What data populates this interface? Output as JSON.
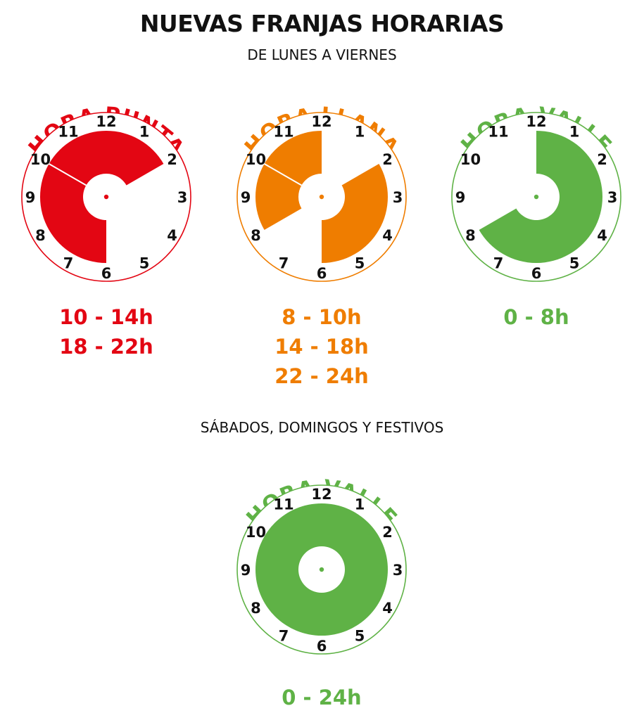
{
  "title": "NUEVAS FRANJAS HORARIAS",
  "weekdays_label": "DE LUNES A VIERNES",
  "weekend_label": "SÁBADOS, DOMINGOS Y FESTIVOS",
  "colors": {
    "punta": "#e30613",
    "llana": "#ef7d00",
    "valle": "#5fb246"
  },
  "clock_numbers": [
    "12",
    "1",
    "2",
    "3",
    "4",
    "5",
    "6",
    "7",
    "8",
    "9",
    "10",
    "11"
  ],
  "clocks": [
    {
      "id": "punta",
      "label": "HORA PUNTA",
      "color": "#e30613",
      "filled_hours": [
        [
          10,
          14
        ],
        [
          18,
          22
        ]
      ],
      "ranges": [
        "10 - 14h",
        "18 - 22h"
      ]
    },
    {
      "id": "llana",
      "label": "HORA LLANA",
      "color": "#ef7d00",
      "filled_hours": [
        [
          8,
          10
        ],
        [
          14,
          18
        ],
        [
          22,
          24
        ]
      ],
      "ranges": [
        "8 - 10h",
        "14 - 18h",
        "22 - 24h"
      ]
    },
    {
      "id": "valle",
      "label": "HORA VALLE",
      "color": "#5fb246",
      "filled_hours": [
        [
          0,
          8
        ]
      ],
      "ranges": [
        "0 - 8h"
      ]
    },
    {
      "id": "valle-weekend",
      "label": "HORA VALLE",
      "color": "#5fb246",
      "filled_hours": [
        [
          0,
          24
        ]
      ],
      "ranges": [
        "0 - 24h"
      ]
    }
  ]
}
